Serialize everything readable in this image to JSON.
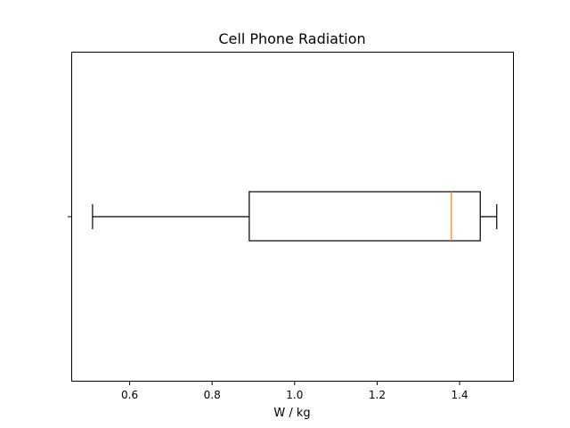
{
  "chart_data": {
    "type": "boxplot",
    "orientation": "horizontal",
    "title": "Cell Phone Radiation",
    "xlabel": "W / kg",
    "ylabel": "",
    "xlim": [
      0.4595,
      1.5305
    ],
    "x_ticks": [
      0.6,
      0.8,
      1.0,
      1.2,
      1.4
    ],
    "x_tick_labels": [
      "0.6",
      "0.8",
      "1.0",
      "1.2",
      "1.4"
    ],
    "grid": false,
    "box": {
      "whisker_low": 0.51,
      "q1": 0.89,
      "median": 1.38,
      "q3": 1.45,
      "whisker_high": 1.49
    },
    "colors": {
      "box": "#000000",
      "median": "#ff7f0e"
    }
  }
}
